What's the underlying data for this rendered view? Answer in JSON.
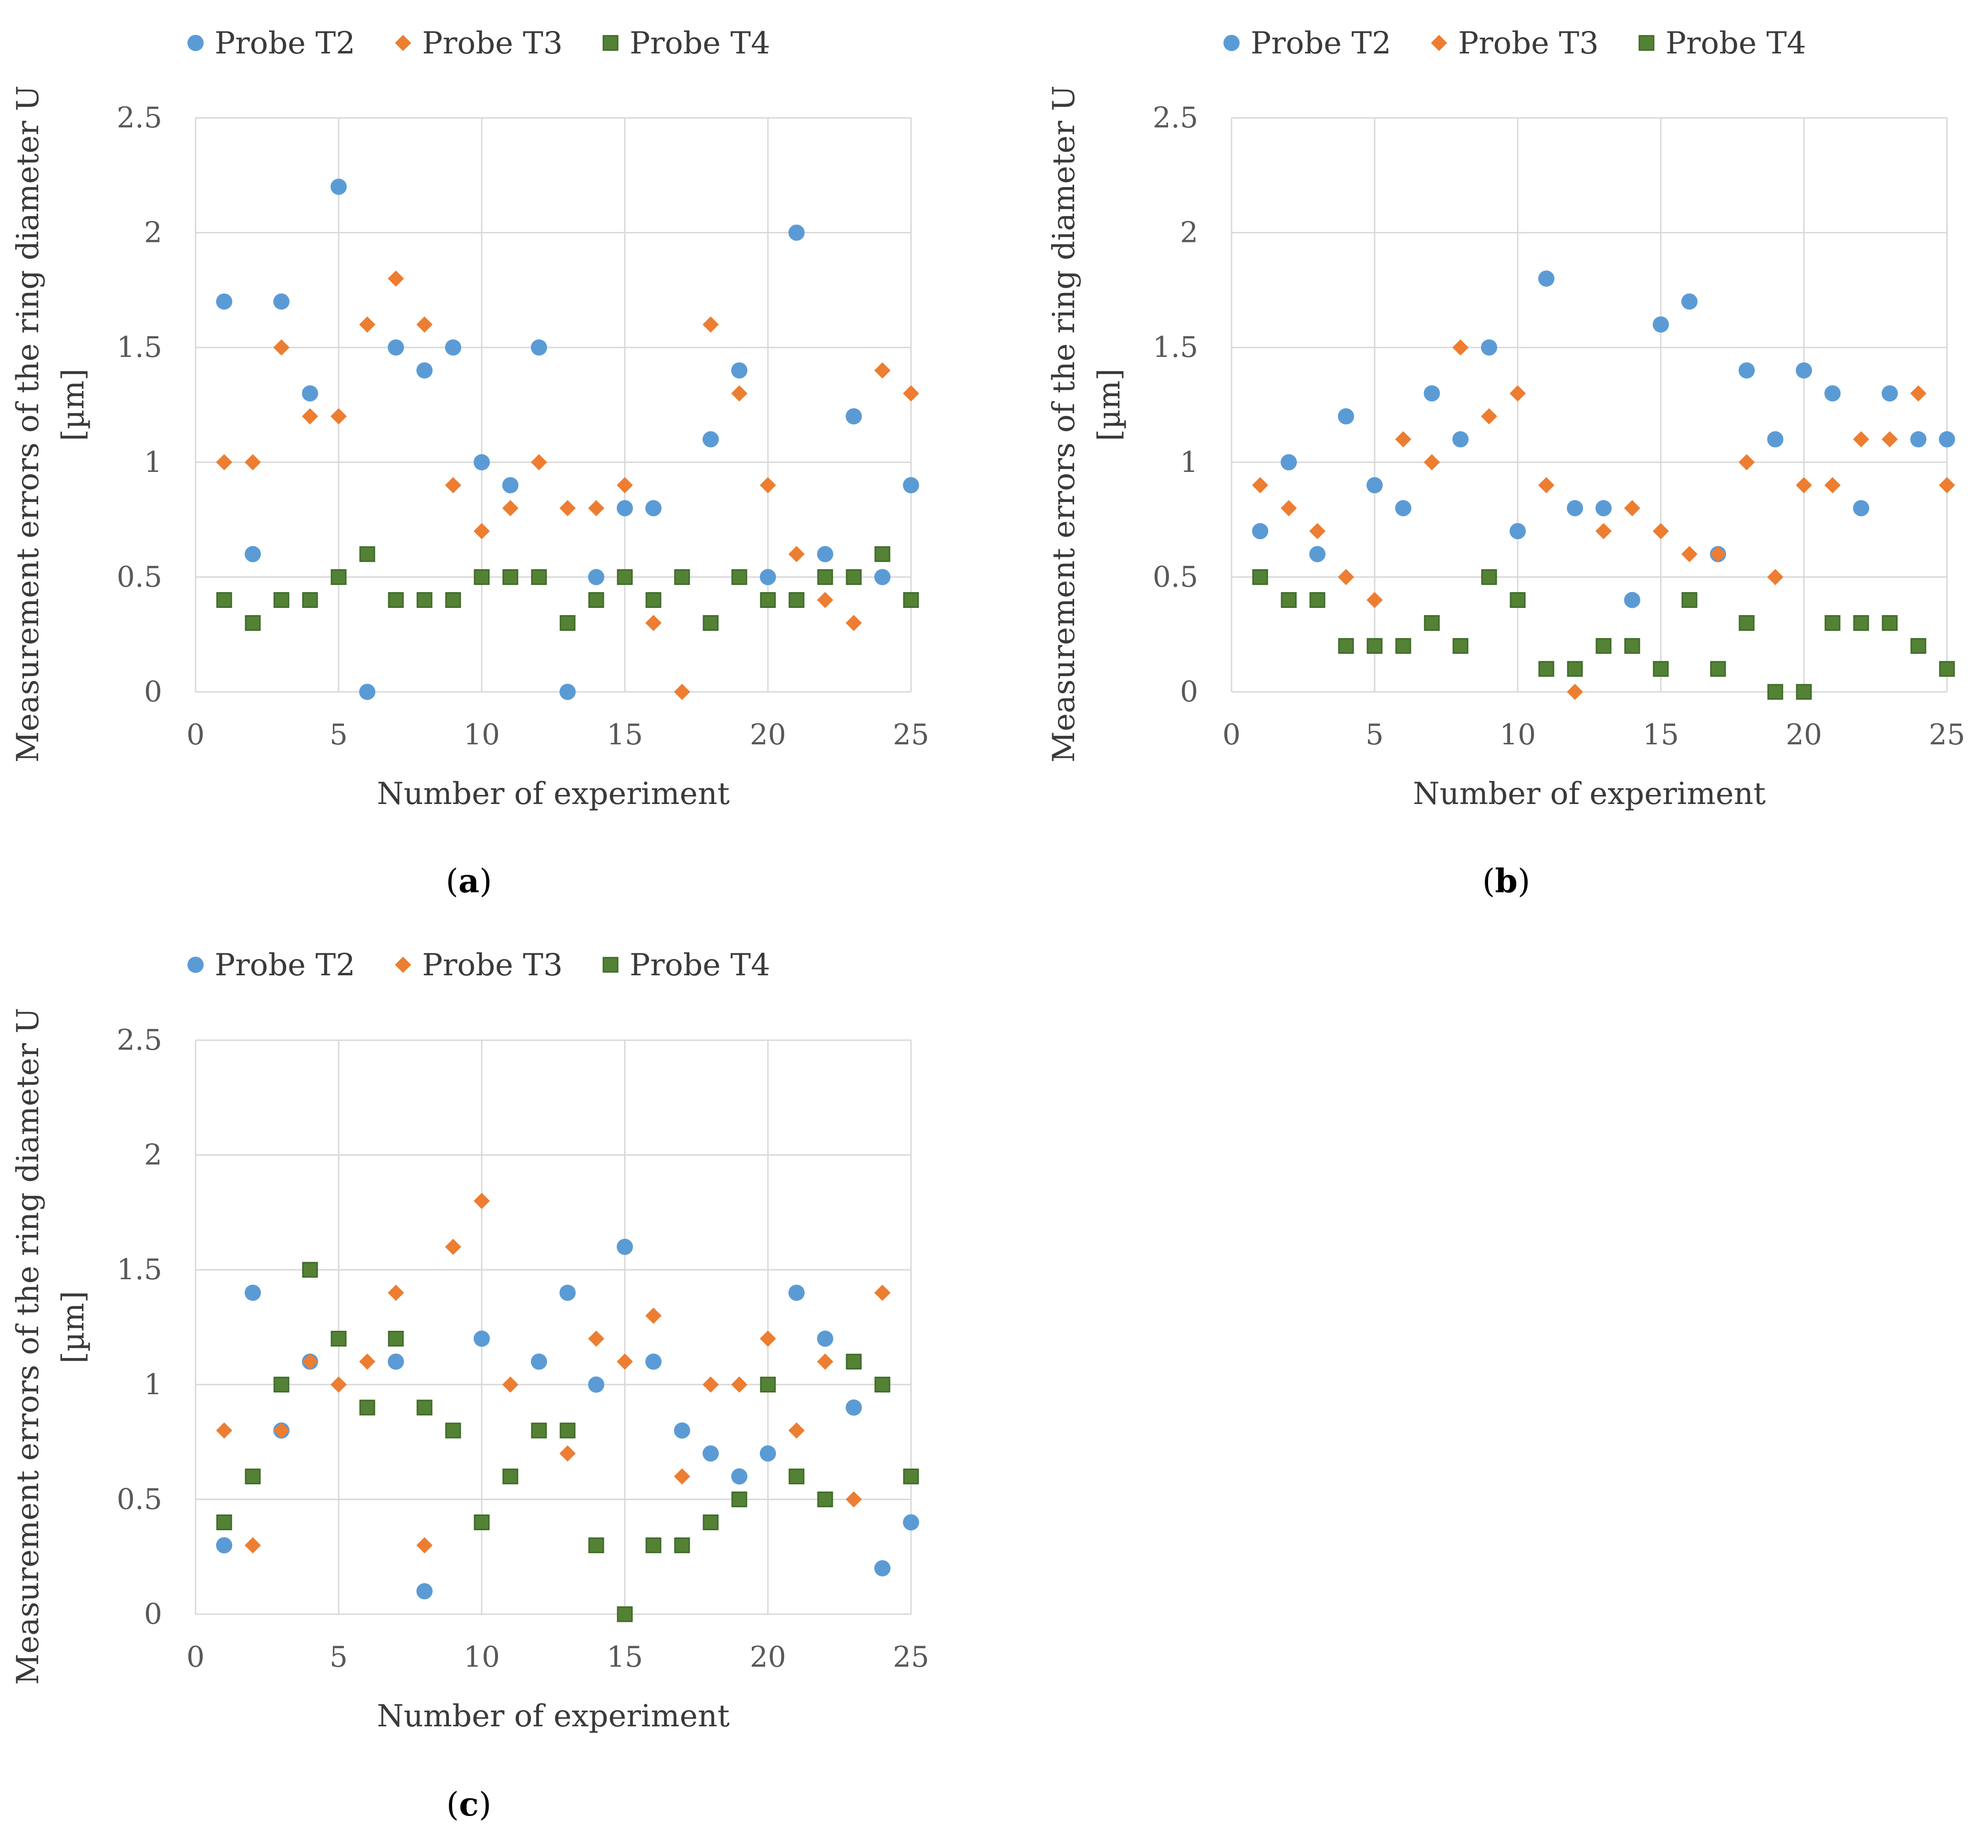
{
  "chart_data": [
    {
      "type": "scatter",
      "panel_label": "a",
      "xlabel": "Number of experiment",
      "ylabel": [
        "Measurement errors of the ring diameter U",
        "[µm]"
      ],
      "xlim": [
        0,
        25
      ],
      "ylim": [
        0,
        2.5
      ],
      "xticks": [
        "0",
        "5",
        "10",
        "15",
        "20",
        "25"
      ],
      "yticks": [
        "0",
        "0.5",
        "1",
        "1.5",
        "2",
        "2.5"
      ],
      "grid": true,
      "legend_position": "top",
      "x": [
        1,
        2,
        3,
        4,
        5,
        6,
        7,
        8,
        9,
        10,
        11,
        12,
        13,
        14,
        15,
        16,
        17,
        18,
        19,
        20,
        21,
        22,
        23,
        24,
        25
      ],
      "series": [
        {
          "name": "Probe T2",
          "marker": "circle",
          "color": "#5b9bd5",
          "values": [
            1.7,
            0.6,
            1.7,
            1.3,
            2.2,
            0,
            1.5,
            1.4,
            1.5,
            1.0,
            0.9,
            1.5,
            0,
            0.5,
            0.8,
            0.8,
            null,
            1.1,
            1.4,
            0.5,
            2.0,
            0.6,
            1.2,
            0.5,
            0.9
          ]
        },
        {
          "name": "Probe T3",
          "marker": "diamond",
          "color": "#ed7d31",
          "values": [
            1.0,
            1.0,
            1.5,
            1.2,
            1.2,
            1.6,
            1.8,
            1.6,
            0.9,
            0.7,
            0.8,
            1.0,
            0.8,
            0.8,
            0.9,
            0.3,
            0,
            1.6,
            1.3,
            0.9,
            0.6,
            0.4,
            0.3,
            1.4,
            1.3
          ]
        },
        {
          "name": "Probe T4",
          "marker": "square",
          "color": "#548235",
          "values": [
            0.4,
            0.3,
            0.4,
            0.4,
            0.5,
            0.6,
            0.4,
            0.4,
            0.4,
            0.5,
            0.5,
            0.5,
            0.3,
            0.4,
            0.5,
            0.4,
            0.5,
            0.3,
            0.5,
            0.4,
            0.4,
            0.5,
            0.5,
            0.6,
            0.4
          ]
        }
      ]
    },
    {
      "type": "scatter",
      "panel_label": "b",
      "xlabel": "Number of experiment",
      "ylabel": [
        "Measurement errors of the ring diameter U",
        "[µm]"
      ],
      "xlim": [
        0,
        25
      ],
      "ylim": [
        0,
        2.5
      ],
      "xticks": [
        "0",
        "5",
        "10",
        "15",
        "20",
        "25"
      ],
      "yticks": [
        "0",
        "0.5",
        "1",
        "1.5",
        "2",
        "2.5"
      ],
      "grid": true,
      "legend_position": "top",
      "x": [
        1,
        2,
        3,
        4,
        5,
        6,
        7,
        8,
        9,
        10,
        11,
        12,
        13,
        14,
        15,
        16,
        17,
        18,
        19,
        20,
        21,
        22,
        23,
        24,
        25
      ],
      "series": [
        {
          "name": "Probe T2",
          "marker": "circle",
          "color": "#5b9bd5",
          "values": [
            0.7,
            1.0,
            0.6,
            1.2,
            0.9,
            0.8,
            1.3,
            1.1,
            1.5,
            0.7,
            1.8,
            0.8,
            0.8,
            0.4,
            1.6,
            1.7,
            0.6,
            1.4,
            1.1,
            1.4,
            1.3,
            0.8,
            1.3,
            1.1,
            1.1
          ]
        },
        {
          "name": "Probe T3",
          "marker": "diamond",
          "color": "#ed7d31",
          "values": [
            0.9,
            0.8,
            0.7,
            0.5,
            0.4,
            1.1,
            1.0,
            1.5,
            1.2,
            1.3,
            0.9,
            0,
            0.7,
            0.8,
            0.7,
            0.6,
            0.6,
            1.0,
            0.5,
            0.9,
            0.9,
            1.1,
            1.1,
            1.3,
            0.9
          ]
        },
        {
          "name": "Probe T4",
          "marker": "square",
          "color": "#548235",
          "values": [
            0.5,
            0.4,
            0.4,
            0.2,
            0.2,
            0.2,
            0.3,
            0.2,
            0.5,
            0.4,
            0.1,
            0.1,
            0.2,
            0.2,
            0.1,
            0.4,
            0.1,
            0.3,
            0,
            0,
            0.3,
            0.3,
            0.3,
            0.2,
            0.1
          ]
        }
      ]
    },
    {
      "type": "scatter",
      "panel_label": "c",
      "xlabel": "Number of experiment",
      "ylabel": [
        "Measurement errors of the ring diameter U",
        "[µm]"
      ],
      "xlim": [
        0,
        25
      ],
      "ylim": [
        0,
        2.5
      ],
      "xticks": [
        "0",
        "5",
        "10",
        "15",
        "20",
        "25"
      ],
      "yticks": [
        "0",
        "0.5",
        "1",
        "1.5",
        "2",
        "2.5"
      ],
      "grid": true,
      "legend_position": "top",
      "x": [
        1,
        2,
        3,
        4,
        5,
        6,
        7,
        8,
        9,
        10,
        11,
        12,
        13,
        14,
        15,
        16,
        17,
        18,
        19,
        20,
        21,
        22,
        23,
        24,
        25
      ],
      "series": [
        {
          "name": "Probe T2",
          "marker": "circle",
          "color": "#5b9bd5",
          "values": [
            0.3,
            1.4,
            0.8,
            1.1,
            null,
            null,
            1.1,
            0.1,
            null,
            1.2,
            null,
            1.1,
            1.4,
            1.0,
            1.6,
            1.1,
            0.8,
            0.7,
            0.6,
            0.7,
            1.4,
            1.2,
            0.9,
            0.2,
            0.4
          ]
        },
        {
          "name": "Probe T3",
          "marker": "diamond",
          "color": "#ed7d31",
          "values": [
            0.8,
            0.3,
            0.8,
            1.1,
            1.0,
            1.1,
            1.4,
            0.3,
            1.6,
            1.8,
            1.0,
            null,
            0.7,
            1.2,
            1.1,
            1.3,
            0.6,
            1.0,
            1.0,
            1.2,
            0.8,
            1.1,
            0.5,
            1.4,
            null
          ]
        },
        {
          "name": "Probe T4",
          "marker": "square",
          "color": "#548235",
          "values": [
            0.4,
            0.6,
            1.0,
            1.5,
            1.2,
            0.9,
            1.2,
            0.9,
            0.8,
            0.4,
            0.6,
            0.8,
            0.8,
            0.3,
            0,
            0.3,
            0.3,
            0.4,
            0.5,
            1.0,
            0.6,
            0.5,
            1.1,
            1.0,
            0.6
          ]
        }
      ]
    }
  ]
}
